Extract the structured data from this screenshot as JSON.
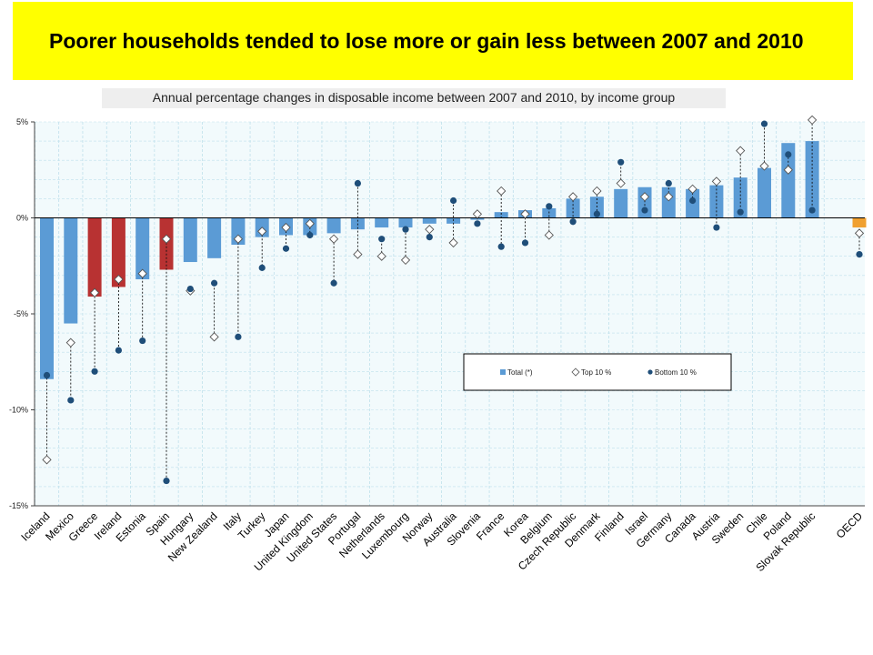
{
  "title": "Poorer households tended to lose more or gain less between 2007 and 2010",
  "subtitle": "Annual percentage changes in disposable income between 2007 and 2010, by income group",
  "colors": {
    "title_band": "#ffff00",
    "bar_blue": "#5b9bd5",
    "bar_red": "#b83232",
    "bar_orange": "#f0a030",
    "bottom_marker": "#1f4e79",
    "plot_bg": "#f2fafc",
    "grid": "#bfe0ec"
  },
  "chart_data": {
    "type": "bar",
    "ylim": [
      -15,
      5
    ],
    "yticks": [
      "-15%",
      "-10%",
      "-5%",
      "0%",
      "5%"
    ],
    "ytick_values": [
      -15,
      -10,
      -5,
      0,
      5
    ],
    "legend": [
      "Total (*)",
      "Top 10 %",
      "Bottom 10 %"
    ],
    "legend_position": "right-center",
    "grid": true,
    "categories": [
      "Iceland",
      "Mexico",
      "Greece",
      "Ireland",
      "Estonia",
      "Spain",
      "Hungary",
      "New Zealand",
      "Italy",
      "Turkey",
      "Japan",
      "United Kingdom",
      "United States",
      "Portugal",
      "Netherlands",
      "Luxembourg",
      "Norway",
      "Australia",
      "Slovenia",
      "France",
      "Korea",
      "Belgium",
      "Czech Republic",
      "Denmark",
      "Finland",
      "Israel",
      "Germany",
      "Canada",
      "Austria",
      "Sweden",
      "Chile",
      "Poland",
      "Slovak Republic",
      "OECD"
    ],
    "highlight_red": [
      "Greece",
      "Ireland",
      "Spain"
    ],
    "highlight_orange": [
      "OECD"
    ],
    "series": [
      {
        "name": "Total (*)",
        "values": [
          -8.4,
          -5.5,
          -4.1,
          -3.6,
          -3.2,
          -2.7,
          -2.3,
          -2.1,
          -1.4,
          -1.0,
          -0.9,
          -0.9,
          -0.8,
          -0.6,
          -0.5,
          -0.5,
          -0.3,
          -0.3,
          -0.1,
          0.3,
          0.4,
          0.5,
          1.0,
          1.1,
          1.5,
          1.6,
          1.6,
          1.5,
          1.7,
          2.1,
          2.6,
          3.9,
          4.0,
          -0.5
        ]
      },
      {
        "name": "Top 10 %",
        "values": [
          -12.6,
          -6.5,
          -3.9,
          -3.2,
          -2.9,
          -1.1,
          -3.8,
          -6.2,
          -1.1,
          -0.7,
          -0.5,
          -0.3,
          -1.1,
          -1.9,
          -2.0,
          -2.2,
          -0.6,
          -1.3,
          0.2,
          1.4,
          0.2,
          -0.9,
          1.1,
          1.4,
          1.8,
          1.1,
          1.1,
          1.5,
          1.9,
          3.5,
          2.7,
          2.5,
          5.1,
          -0.8
        ]
      },
      {
        "name": "Bottom 10 %",
        "values": [
          -8.2,
          -9.5,
          -8.0,
          -6.9,
          -6.4,
          -13.7,
          -3.7,
          -3.4,
          -6.2,
          -2.6,
          -1.6,
          -0.9,
          -3.4,
          1.8,
          -1.1,
          -0.6,
          -1.0,
          0.9,
          -0.3,
          -1.5,
          -1.3,
          0.6,
          -0.2,
          0.2,
          2.9,
          0.4,
          1.8,
          0.9,
          -0.5,
          0.3,
          4.9,
          3.3,
          0.4,
          -1.9
        ]
      }
    ]
  }
}
